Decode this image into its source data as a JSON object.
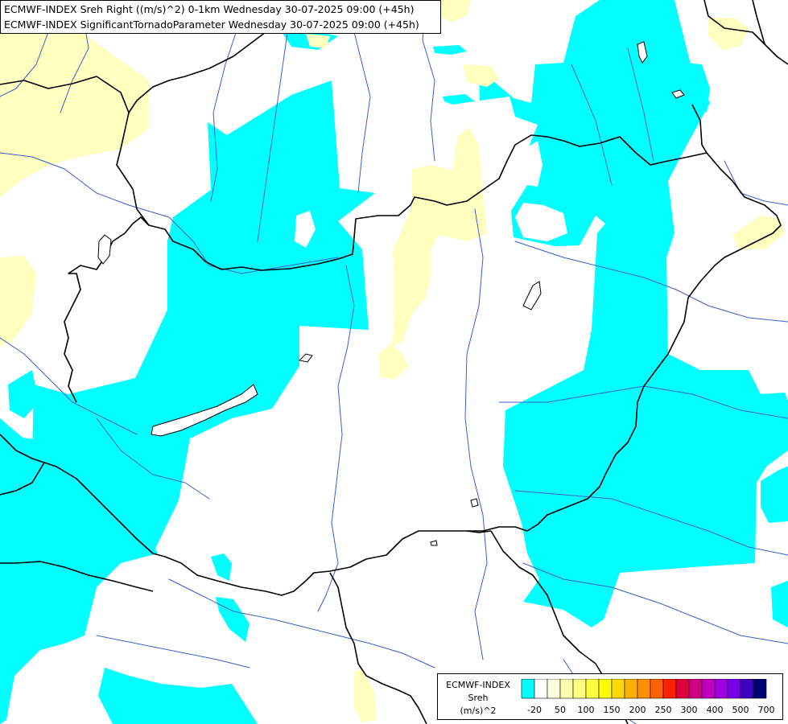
{
  "header": {
    "line1": "ECMWF-INDEX Sreh Right ((m/s)^2) 0-1km Wednesday 30-07-2025 09:00 (+45h)",
    "line2": "ECMWF-INDEX SignificantTornadoParameter Wednesday 30-07-2025 09:00 (+45h)"
  },
  "legend": {
    "title": [
      "ECMWF-INDEX",
      "Sreh",
      "(m/s)^2"
    ],
    "colors": [
      "#00ffff",
      "#ffffff",
      "#ffffe0",
      "#ffffb0",
      "#ffff80",
      "#ffff40",
      "#ffff00",
      "#ffd800",
      "#ffb000",
      "#ff9000",
      "#ff6000",
      "#ff2000",
      "#e0003c",
      "#d00080",
      "#c000c0",
      "#a000e0",
      "#7800e8",
      "#4000c0",
      "#000070"
    ],
    "labels": [
      {
        "text": "-20",
        "at": 1
      },
      {
        "text": "50",
        "at": 3
      },
      {
        "text": "100",
        "at": 5
      },
      {
        "text": "150",
        "at": 7
      },
      {
        "text": "200",
        "at": 9
      },
      {
        "text": "250",
        "at": 11
      },
      {
        "text": "300",
        "at": 13
      },
      {
        "text": "400",
        "at": 15
      },
      {
        "text": "500",
        "at": 17
      },
      {
        "text": "700",
        "at": 19
      }
    ]
  },
  "map": {
    "fills": {
      "low": "#00ffff",
      "mid": "#ffffc0"
    },
    "border_color": "#000000",
    "river_color": "#3a5fcd"
  }
}
